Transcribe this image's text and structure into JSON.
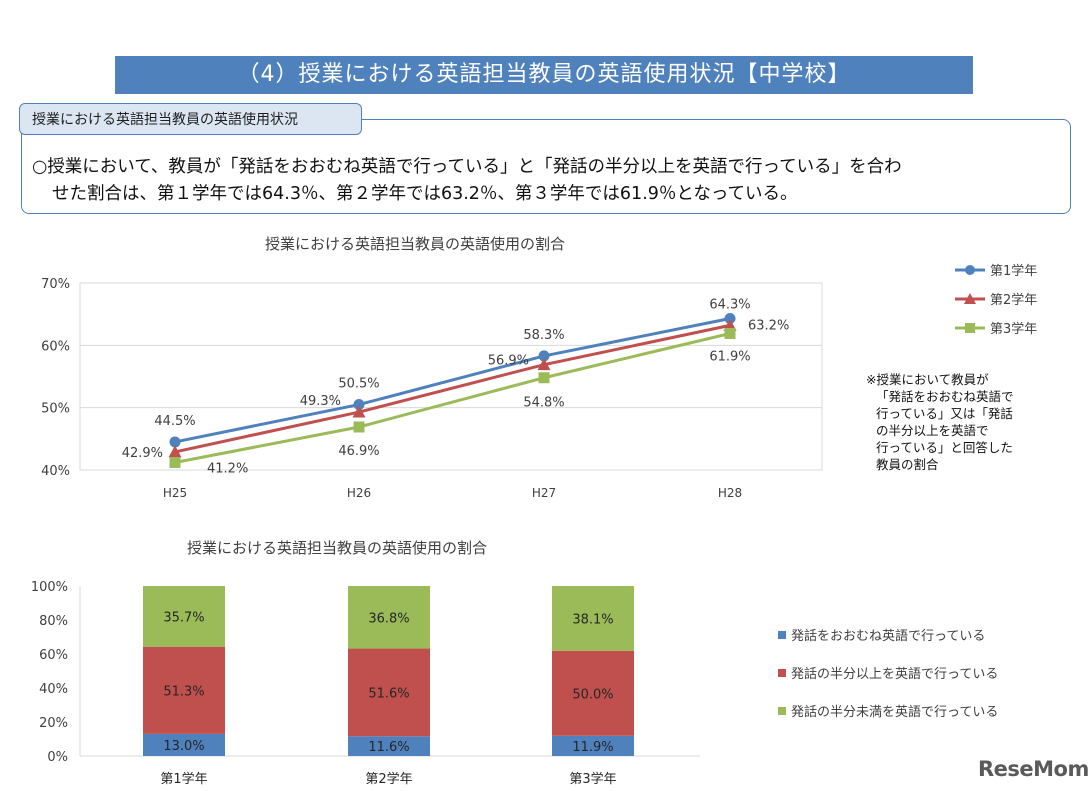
{
  "header": {
    "title": "（4）授業における英語担当教員の英語使用状況【中学校】",
    "tab_label": "授業における英語担当教員の英語使用状況",
    "summary_line1": "○授業において、教員が「発話をおおむね英語で行っている」と「発話の半分以上を英語で行っている」を合わ",
    "summary_line2": "せた割合は、第１学年では64.3％、第２学年では63.2％、第３学年では61.9％となっている。"
  },
  "note": {
    "lines": [
      "※授業において教員が",
      "「発話をおおむね英語で",
      "行っている」又は「発話",
      "の半分以上を英語で",
      "行っている」と回答した",
      "教員の割合"
    ]
  },
  "logo": "ReseMom",
  "colors": {
    "blue": "#4f81bd",
    "red": "#c0504d",
    "green": "#9bbb59",
    "grid": "#d9d9d9"
  },
  "chart_data": [
    {
      "type": "line",
      "title": "授業における英語担当教員の英語使用の割合",
      "categories": [
        "H25",
        "H26",
        "H27",
        "H28"
      ],
      "ylim": [
        40,
        70
      ],
      "yticks": [
        40,
        50,
        60,
        70
      ],
      "ytick_labels": [
        "40%",
        "50%",
        "60%",
        "70%"
      ],
      "grid": true,
      "legend_position": "top-right",
      "series": [
        {
          "name": "第1学年",
          "marker": "circle",
          "color": "#4f81bd",
          "values": [
            44.5,
            50.5,
            58.3,
            64.3
          ],
          "labels": [
            "44.5%",
            "50.5%",
            "58.3%",
            "64.3%"
          ]
        },
        {
          "name": "第2学年",
          "marker": "triangle",
          "color": "#c0504d",
          "values": [
            42.9,
            49.3,
            56.9,
            63.2
          ],
          "labels": [
            "42.9%",
            "49.3%",
            "56.9%",
            "63.2%"
          ]
        },
        {
          "name": "第3学年",
          "marker": "square",
          "color": "#9bbb59",
          "values": [
            41.2,
            46.9,
            54.8,
            61.9
          ],
          "labels": [
            "41.2%",
            "46.9%",
            "54.8%",
            "61.9%"
          ]
        }
      ]
    },
    {
      "type": "bar",
      "stacked": true,
      "title": "授業における英語担当教員の英語使用の割合",
      "categories": [
        "第1学年",
        "第2学年",
        "第3学年"
      ],
      "ylim": [
        0,
        100
      ],
      "yticks": [
        0,
        20,
        40,
        60,
        80,
        100
      ],
      "ytick_labels": [
        "0%",
        "20%",
        "40%",
        "60%",
        "80%",
        "100%"
      ],
      "legend_position": "right",
      "series": [
        {
          "name": "発話をおおむね英語で行っている",
          "color": "#4f81bd",
          "values": [
            13.0,
            11.6,
            11.9
          ],
          "labels": [
            "13.0%",
            "11.6%",
            "11.9%"
          ]
        },
        {
          "name": "発話の半分以上を英語で行っている",
          "color": "#c0504d",
          "values": [
            51.3,
            51.6,
            50.0
          ],
          "labels": [
            "51.3%",
            "51.6%",
            "50.0%"
          ]
        },
        {
          "name": "発話の半分未満を英語で行っている",
          "color": "#9bbb59",
          "values": [
            35.7,
            36.8,
            38.1
          ],
          "labels": [
            "35.7%",
            "36.8%",
            "38.1%"
          ]
        }
      ]
    }
  ]
}
